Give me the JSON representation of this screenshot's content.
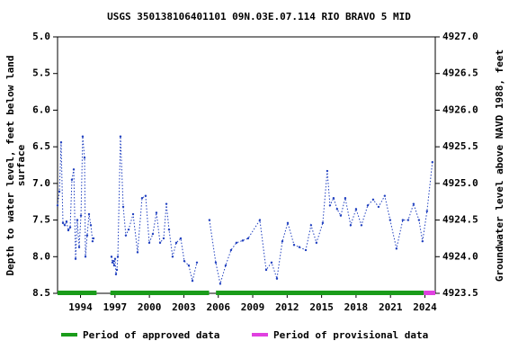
{
  "chart_data": {
    "type": "line",
    "title": "USGS 350138106401101 09N.03E.07.114 RIO BRAVO 5 MID",
    "ylabel": [
      "Depth to water level, feet below land",
      "surface"
    ],
    "y2label": "Groundwater level above NAVD 1988, feet",
    "xlim": [
      1992.0,
      2024.9
    ],
    "xticks": [
      1994,
      1997,
      2000,
      2003,
      2006,
      2009,
      2012,
      2015,
      2018,
      2021,
      2024
    ],
    "ylim": [
      8.5,
      5.0
    ],
    "yticks": [
      {
        "value": 5,
        "label": "5.0"
      },
      5.5,
      {
        "value": 6,
        "label": "6.0"
      },
      6.5,
      {
        "value": 7,
        "label": "7.0"
      },
      7.5,
      {
        "value": 8,
        "label": "8.0"
      },
      8.5
    ],
    "y2lim": [
      4923.5,
      4927.0
    ],
    "y2ticks": [
      {
        "value": 4927,
        "label": "4927.0"
      },
      4926.5,
      {
        "value": 4926,
        "label": "4926.0"
      },
      4925.5,
      {
        "value": 4925,
        "label": "4925.0"
      },
      4924.5,
      {
        "value": 4924,
        "label": "4924.0"
      },
      4923.5
    ],
    "series": [
      {
        "color": "#1f3fbf",
        "x": [
          1992.0,
          1992.16,
          1992.31,
          1992.47,
          1992.63,
          1992.78,
          1992.94,
          1993.1,
          1993.25,
          1993.41,
          1993.57,
          1993.72,
          1993.88,
          1994.04,
          1994.19,
          1994.35,
          1994.43,
          1994.58,
          1994.74,
          1994.9,
          1995.05,
          1995.13,
          null,
          1996.7,
          1996.78,
          1996.86,
          1996.93,
          1997.01,
          1997.09,
          1997.17,
          1997.25,
          1997.48,
          1997.72,
          1997.95,
          1998.19,
          1998.58,
          1998.97,
          1999.36,
          1999.67,
          1999.99,
          2000.3,
          2000.61,
          2000.93,
          2001.24,
          2001.48,
          2001.71,
          2002.02,
          2002.34,
          2002.73,
          2003.04,
          2003.43,
          2003.75,
          2004.14,
          null,
          2005.23,
          2005.78,
          2006.17,
          2006.64,
          2007.11,
          2007.58,
          2008.13,
          2008.6,
          2009.62,
          2010.17,
          2010.64,
          2011.11,
          2011.58,
          2012.05,
          2012.6,
          2013.07,
          2013.62,
          2014.08,
          2014.55,
          2015.1,
          2015.49,
          2015.73,
          2016.04,
          2016.35,
          2016.67,
          2017.06,
          2017.53,
          2018.0,
          2018.47,
          2019.02,
          2019.49,
          2019.96,
          2020.5,
          2020.97,
          2021.52,
          2022.07,
          2022.54,
          2023.01,
          2023.48,
          2023.79,
          2024.18,
          2024.65
        ],
        "values": [
          7.3,
          7.11,
          6.44,
          7.54,
          7.57,
          7.52,
          7.64,
          7.6,
          6.95,
          6.81,
          8.03,
          7.5,
          7.87,
          7.44,
          6.36,
          6.65,
          8.0,
          7.71,
          7.42,
          7.57,
          7.79,
          7.75,
          null,
          8.0,
          8.08,
          8.06,
          8.12,
          8.03,
          8.24,
          8.18,
          8.0,
          6.36,
          7.32,
          7.71,
          7.63,
          7.42,
          7.94,
          7.2,
          7.17,
          7.81,
          7.69,
          7.4,
          7.81,
          7.75,
          7.28,
          7.63,
          8.0,
          7.81,
          7.75,
          8.06,
          8.12,
          8.33,
          8.08,
          null,
          7.5,
          8.08,
          8.37,
          8.12,
          7.91,
          7.81,
          7.78,
          7.75,
          7.5,
          8.18,
          8.08,
          8.3,
          7.79,
          7.54,
          7.84,
          7.87,
          7.91,
          7.57,
          7.81,
          7.54,
          6.83,
          7.3,
          7.2,
          7.35,
          7.44,
          7.2,
          7.57,
          7.35,
          7.57,
          7.3,
          7.22,
          7.32,
          7.17,
          7.5,
          7.89,
          7.5,
          7.5,
          7.28,
          7.5,
          7.79,
          7.38,
          6.71
        ]
      }
    ],
    "periods": [
      {
        "name": "Period of approved data",
        "color": "#1a9c1a",
        "ranges": [
          [
            1992.0,
            1995.4
          ],
          [
            1996.6,
            2005.2
          ],
          [
            2005.8,
            2023.9
          ]
        ]
      },
      {
        "name": "Period of provisional data",
        "color": "#e040e0",
        "ranges": [
          [
            2023.9,
            2024.9
          ]
        ]
      }
    ]
  }
}
